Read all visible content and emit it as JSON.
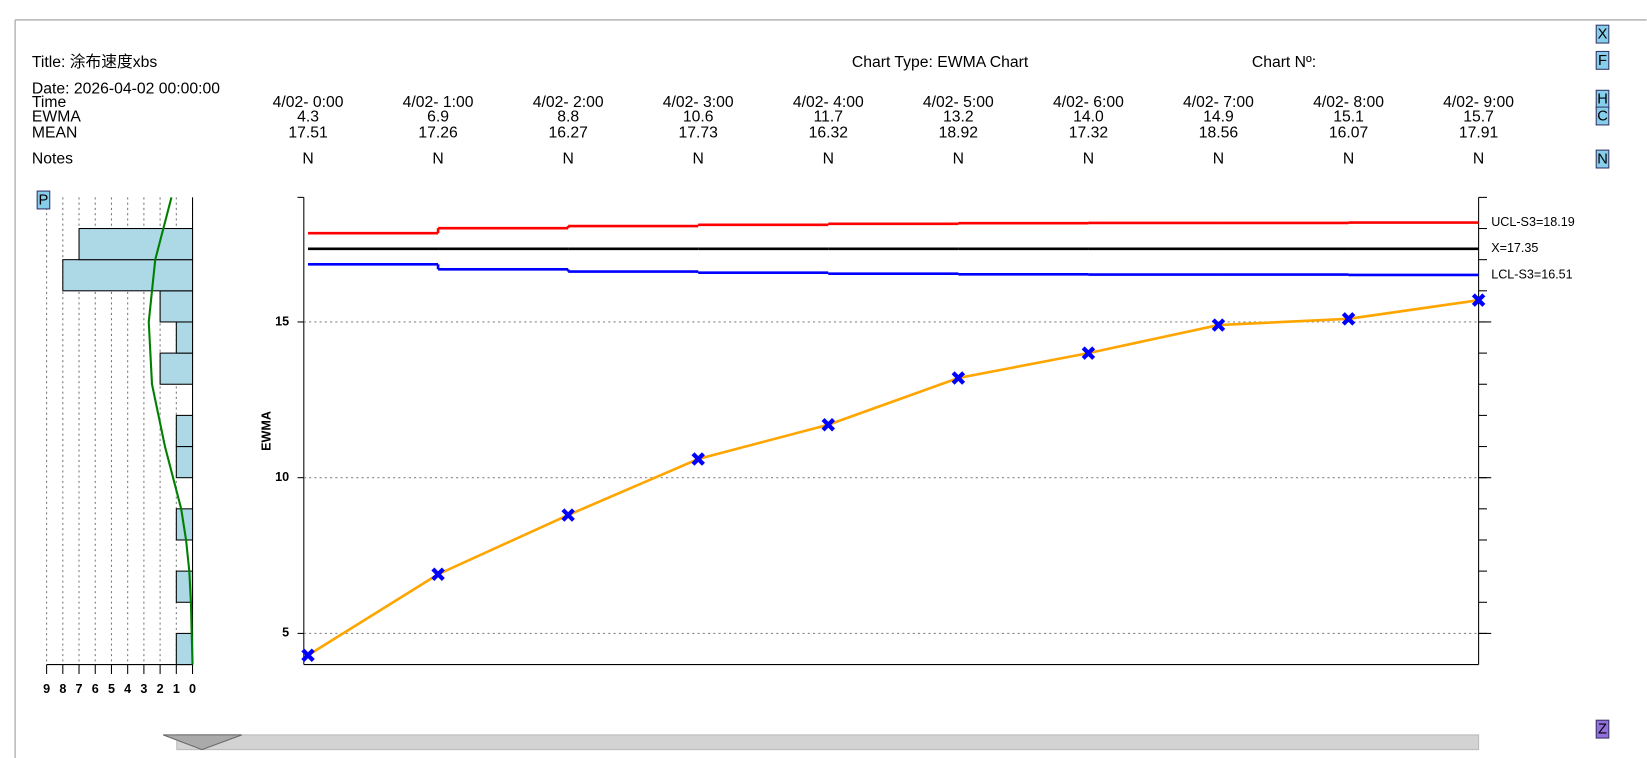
{
  "header": {
    "title": "Title: 涂布速度xbs",
    "date": "Date: 2026-04-02 00:00:00",
    "chart_type": "Chart Type: EWMA Chart",
    "chart_no": "Chart Nº:"
  },
  "table": {
    "row_labels": [
      "Time",
      "EWMA",
      "MEAN",
      "Notes"
    ],
    "mean": [
      "17.51",
      "17.26",
      "16.27",
      "17.73",
      "16.32",
      "18.92",
      "17.32",
      "18.56",
      "16.07",
      "17.91"
    ],
    "notes": [
      "N",
      "N",
      "N",
      "N",
      "N",
      "N",
      "N",
      "N",
      "N",
      "N"
    ]
  },
  "buttons": [
    "X",
    "F",
    "H",
    "C",
    "N",
    "P",
    "Z"
  ],
  "chart_data": [
    {
      "type": "line",
      "y_label": "EWMA",
      "categories": [
        "4/02- 0:00",
        "4/02- 1:00",
        "4/02- 2:00",
        "4/02- 3:00",
        "4/02- 4:00",
        "4/02- 5:00",
        "4/02- 6:00",
        "4/02- 7:00",
        "4/02- 8:00",
        "4/02- 9:00"
      ],
      "series": [
        {
          "name": "EWMA",
          "color": "#ffa500",
          "marker_color": "#0000ff",
          "values": [
            4.3,
            6.9,
            8.8,
            10.6,
            11.7,
            13.2,
            14.0,
            14.9,
            15.1,
            15.7
          ],
          "value_labels": [
            "4.3",
            "6.9",
            "8.8",
            "10.6",
            "11.7",
            "13.2",
            "14.0",
            "14.9",
            "15.1",
            "15.7"
          ]
        }
      ],
      "limits": [
        {
          "label": "UCL-S3=18.19",
          "color": "#ff0000",
          "values": [
            17.85,
            18.01,
            18.08,
            18.12,
            18.15,
            18.17,
            18.18,
            18.18,
            18.19,
            18.19
          ]
        },
        {
          "label": "X=17.35",
          "color": "#000000",
          "values": [
            17.35,
            17.35,
            17.35,
            17.35,
            17.35,
            17.35,
            17.35,
            17.35,
            17.35,
            17.35
          ]
        },
        {
          "label": "LCL-S3=16.51",
          "color": "#0000ff",
          "values": [
            16.85,
            16.69,
            16.62,
            16.58,
            16.55,
            16.53,
            16.52,
            16.52,
            16.51,
            16.51
          ]
        }
      ],
      "ylim": [
        4,
        19
      ],
      "yticks": [
        5,
        10,
        15
      ],
      "yminorticks": [
        5,
        6,
        7,
        8,
        9,
        10,
        11,
        12,
        13,
        14,
        15,
        16,
        17,
        18,
        19
      ],
      "grid": true
    },
    {
      "type": "histogram",
      "orientation": "horizontal",
      "color": "#add8e6",
      "bins": [
        4,
        5,
        6,
        7,
        8,
        9,
        10,
        11,
        12,
        13,
        14,
        15,
        16,
        17,
        18
      ],
      "values": [
        1,
        0,
        1,
        0,
        1,
        0,
        1,
        1,
        0,
        2,
        1,
        2,
        8,
        7
      ],
      "xlim": [
        9,
        0
      ],
      "xticks": [
        9,
        8,
        7,
        6,
        5,
        4,
        3,
        2,
        1,
        0
      ],
      "ylim": [
        4,
        19
      ],
      "grid": true,
      "curve": {
        "color": "#008000",
        "y": [
          19,
          18,
          17,
          16,
          15,
          14,
          13,
          12,
          11,
          10,
          9,
          8,
          7,
          6,
          5,
          4
        ],
        "values": [
          1.3,
          1.8,
          2.3,
          2.5,
          2.7,
          2.6,
          2.5,
          2.1,
          1.7,
          1.2,
          0.7,
          0.4,
          0.2,
          0.1,
          0.05,
          0
        ]
      }
    }
  ]
}
